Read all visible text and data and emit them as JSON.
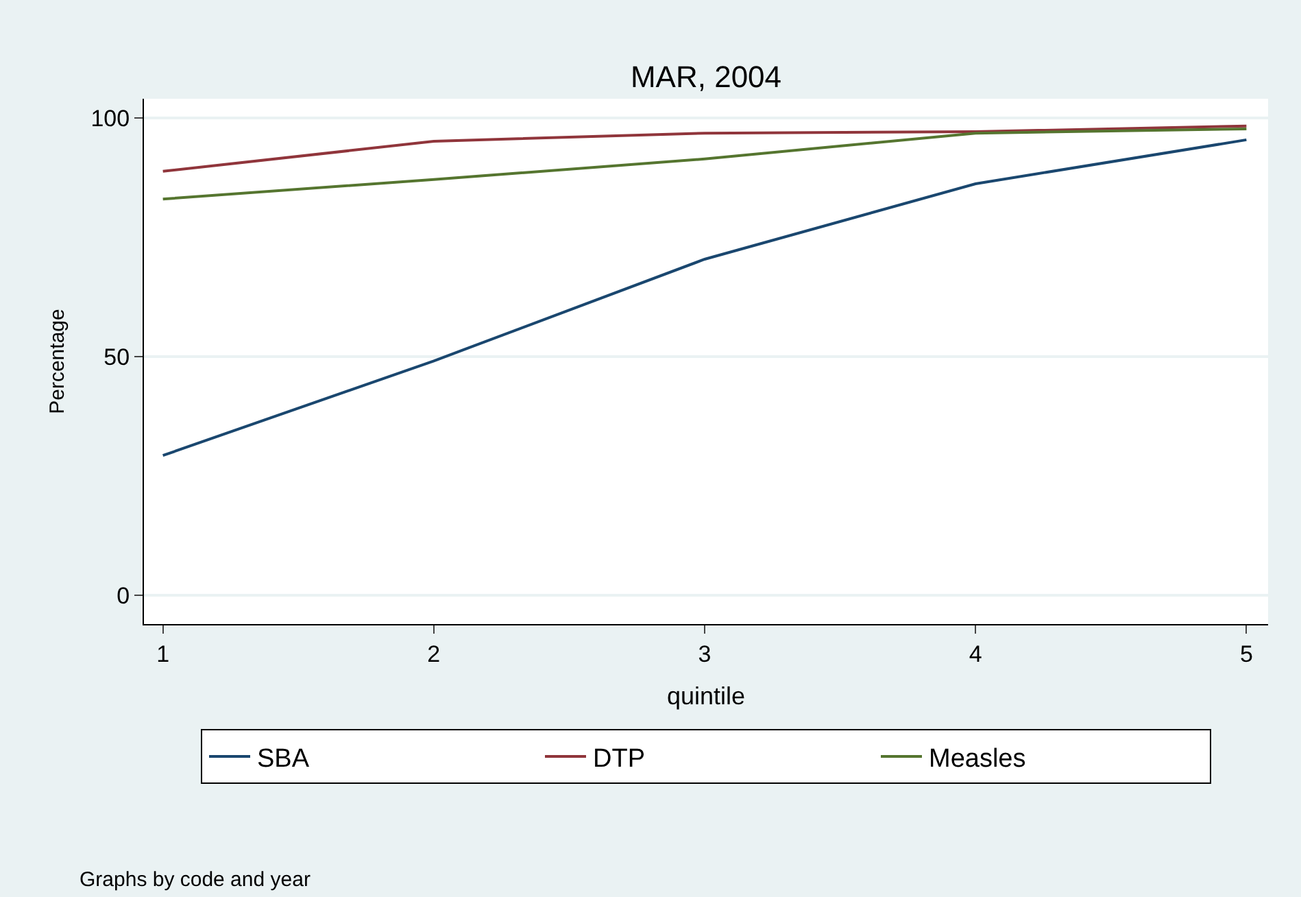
{
  "chart_data": {
    "type": "line",
    "title": "MAR, 2004",
    "xlabel": "quintile",
    "ylabel": "Percentage",
    "x": [
      1,
      2,
      3,
      4,
      5
    ],
    "series": [
      {
        "name": "SBA",
        "color": "#1a476f",
        "values": [
          29.3,
          49.1,
          70.4,
          86.2,
          95.4
        ]
      },
      {
        "name": "DTP",
        "color": "#90353b",
        "values": [
          88.8,
          95.1,
          96.8,
          97.1,
          98.3
        ]
      },
      {
        "name": "Measles",
        "color": "#55752f",
        "values": [
          83.0,
          87.1,
          91.4,
          96.8,
          97.7
        ]
      }
    ],
    "xlim": [
      0.93,
      5.08
    ],
    "xticks": [
      1,
      2,
      3,
      4,
      5
    ],
    "ylim": [
      -6,
      104
    ],
    "yticks": [
      0,
      50,
      100
    ],
    "grid": "y",
    "legend": "bottom",
    "marker": "none",
    "line_style": "solid",
    "annotations": [
      "Graphs by code and year"
    ]
  }
}
